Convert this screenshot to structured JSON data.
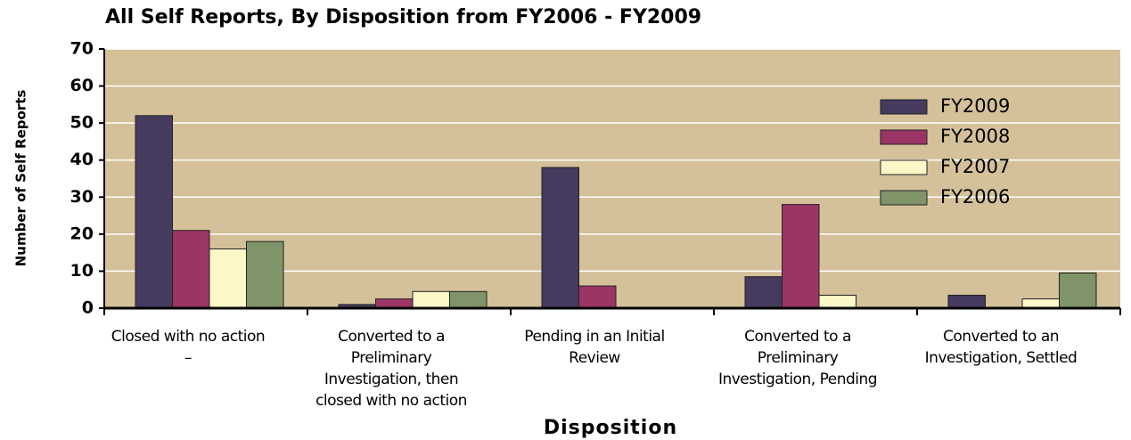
{
  "chart_data": {
    "type": "bar",
    "title": "All Self Reports, By Disposition from FY2006 - FY2009",
    "x_label": "Disposition",
    "y_label": "Number of Self Reports",
    "categories": [
      "Closed with no action\n–",
      "Converted to a\nPreliminary\nInvestigation, then\nclosed with no action",
      "Pending in an Initial\nReview",
      "Converted to a\nPreliminary\nInvestigation, Pending",
      "Converted to an\nInvestigation, Settled"
    ],
    "series": [
      {
        "name": "FY2009",
        "color": "#463b5e",
        "values": [
          52,
          1,
          38,
          8.5,
          3.5
        ]
      },
      {
        "name": "FY2008",
        "color": "#9b3565",
        "values": [
          21,
          2.5,
          6,
          28,
          0
        ]
      },
      {
        "name": "FY2007",
        "color": "#fdf8c8",
        "values": [
          16,
          4.5,
          0,
          3.5,
          2.5
        ]
      },
      {
        "name": "FY2006",
        "color": "#7f9468",
        "values": [
          18,
          4.5,
          0,
          0,
          9.5
        ]
      }
    ],
    "ylim": [
      0,
      70
    ],
    "yticks": [
      0,
      10,
      20,
      30,
      40,
      50,
      60,
      70
    ],
    "grid": true,
    "legend": "upper right",
    "plot_background": "#d4c19a"
  }
}
